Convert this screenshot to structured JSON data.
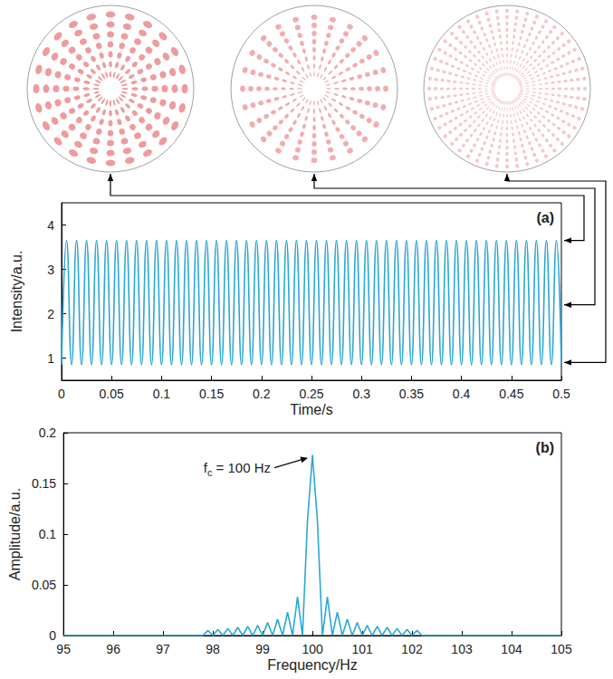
{
  "chart_data": [
    {
      "type": "line",
      "panel": "(a)",
      "x_label": "Time/s",
      "y_label": "Intensity/a.u.",
      "xlim": [
        0,
        0.5
      ],
      "xticks": [
        0,
        0.05,
        0.1,
        0.15,
        0.2,
        0.25,
        0.3,
        0.35,
        0.4,
        0.45,
        0.5
      ],
      "ylim": [
        0.5,
        4.5
      ],
      "yticks": [
        1,
        2,
        3,
        4
      ],
      "grid": false,
      "color": "#2ba6d6",
      "pattern_levels": [
        3.65,
        2.2,
        0.9
      ],
      "x": [
        0,
        0.005,
        0.01,
        0.015,
        0.02,
        0.025,
        0.03,
        0.035,
        0.04,
        0.045,
        0.05,
        0.055,
        0.06,
        0.065,
        0.07,
        0.075,
        0.08,
        0.085,
        0.09,
        0.095,
        0.1,
        0.105,
        0.11,
        0.115,
        0.12,
        0.125,
        0.13,
        0.135,
        0.14,
        0.145,
        0.15,
        0.155,
        0.16,
        0.165,
        0.17,
        0.175,
        0.18,
        0.185,
        0.19,
        0.195,
        0.2,
        0.205,
        0.21,
        0.215,
        0.22,
        0.225,
        0.23,
        0.235,
        0.24,
        0.245,
        0.25,
        0.255,
        0.26,
        0.265,
        0.27,
        0.275,
        0.28,
        0.285,
        0.29,
        0.295,
        0.3,
        0.305,
        0.31,
        0.315,
        0.32,
        0.325,
        0.33,
        0.335,
        0.34,
        0.345,
        0.35,
        0.355,
        0.36,
        0.365,
        0.37,
        0.375,
        0.38,
        0.385,
        0.39,
        0.395,
        0.4,
        0.405,
        0.41,
        0.415,
        0.42,
        0.425,
        0.43,
        0.435,
        0.44,
        0.445,
        0.45,
        0.455,
        0.46,
        0.465,
        0.47,
        0.475,
        0.48,
        0.485,
        0.49,
        0.495,
        0.5
      ],
      "values": [
        0.85,
        3.65,
        0.85,
        3.65,
        0.85,
        3.65,
        0.85,
        3.65,
        0.85,
        3.65,
        0.85,
        3.65,
        0.85,
        3.65,
        0.85,
        3.65,
        0.85,
        3.65,
        0.85,
        3.65,
        0.85,
        3.65,
        0.85,
        3.65,
        0.85,
        3.65,
        0.85,
        3.65,
        0.85,
        3.65,
        0.85,
        3.65,
        0.85,
        3.65,
        0.85,
        3.65,
        0.85,
        3.65,
        0.85,
        3.65,
        0.85,
        3.65,
        0.85,
        3.65,
        0.85,
        3.65,
        0.85,
        3.65,
        0.85,
        3.65,
        0.85,
        3.65,
        0.85,
        3.65,
        0.85,
        3.65,
        0.85,
        3.65,
        0.85,
        3.65,
        0.85,
        3.65,
        0.85,
        3.65,
        0.85,
        3.65,
        0.85,
        3.65,
        0.85,
        3.65,
        0.85,
        3.65,
        0.85,
        3.65,
        0.85,
        3.65,
        0.85,
        3.65,
        0.85,
        3.65,
        0.85,
        3.65,
        0.85,
        3.65,
        0.85,
        3.65,
        0.85,
        3.65,
        0.85,
        3.65,
        0.85,
        3.65,
        0.85,
        3.65,
        0.85,
        3.65,
        0.85,
        3.65,
        0.85,
        3.65,
        0.85
      ]
    },
    {
      "type": "line",
      "panel": "(b)",
      "x_label": "Frequency/Hz",
      "y_label": "Amplitude/a.u.",
      "xlim": [
        95,
        105
      ],
      "xticks": [
        95,
        96,
        97,
        98,
        99,
        100,
        101,
        102,
        103,
        104,
        105
      ],
      "ylim": [
        0,
        0.2
      ],
      "yticks": [
        0,
        0.05,
        0.1,
        0.15,
        0.2
      ],
      "grid": false,
      "color": "#2ba6d6",
      "annotation": {
        "base": "f",
        "subscript": "c",
        "text": "= 100 Hz",
        "x": 100,
        "y": 0.178
      },
      "x": [
        95,
        97.8,
        97.9,
        98,
        98.1,
        98.2,
        98.3,
        98.4,
        98.5,
        98.6,
        98.7,
        98.8,
        98.9,
        99,
        99.1,
        99.2,
        99.3,
        99.4,
        99.5,
        99.6,
        99.7,
        99.8,
        99.9,
        100,
        100.1,
        100.2,
        100.3,
        100.4,
        100.5,
        100.6,
        100.7,
        100.8,
        100.9,
        101,
        101.1,
        101.2,
        101.3,
        101.4,
        101.5,
        101.6,
        101.7,
        101.8,
        101.9,
        102,
        102.1,
        102.2,
        105
      ],
      "values": [
        0,
        0,
        0.005,
        0,
        0.006,
        0,
        0.007,
        0,
        0.008,
        0,
        0.009,
        0,
        0.01,
        0,
        0.013,
        0,
        0.016,
        0,
        0.023,
        0,
        0.038,
        0,
        0.113,
        0.178,
        0.113,
        0,
        0.038,
        0,
        0.023,
        0,
        0.016,
        0,
        0.013,
        0,
        0.01,
        0,
        0.009,
        0,
        0.008,
        0,
        0.007,
        0,
        0.006,
        0,
        0.005,
        0,
        0
      ]
    }
  ]
}
